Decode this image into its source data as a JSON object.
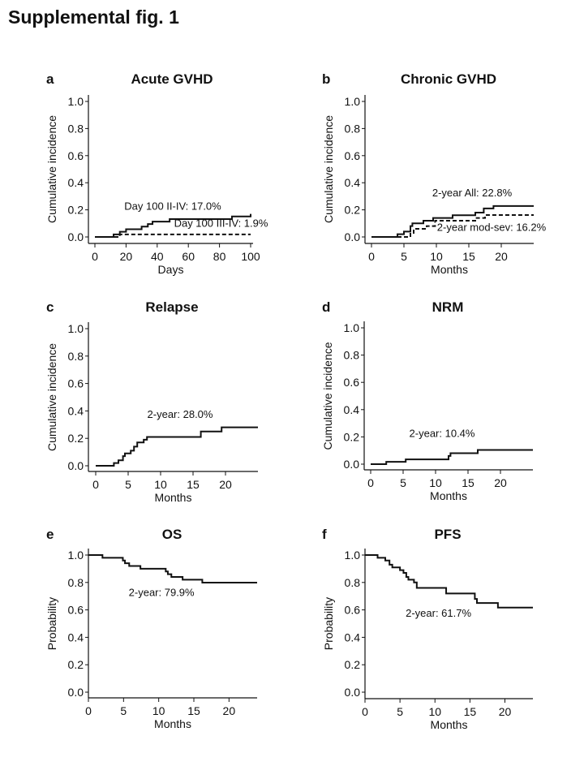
{
  "figure": {
    "title": "Supplemental fig. 1"
  },
  "chart_data": [
    {
      "type": "line",
      "letter": "a",
      "title": "Acute GVHD",
      "xlabel": "Days",
      "ylabel": "Cumulative incidence",
      "xlim": [
        0,
        100
      ],
      "ylim": [
        0,
        1
      ],
      "xticks": [
        0,
        20,
        40,
        60,
        80,
        100
      ],
      "xtick_labels": [
        "0",
        "20",
        "40",
        "60",
        "80",
        "100"
      ],
      "yticks": [
        0,
        0.2,
        0.4,
        0.6,
        0.8,
        1.0
      ],
      "ytick_labels": [
        "0.0",
        "0.2",
        "0.4",
        "0.6",
        "0.8",
        "1.0"
      ],
      "series": [
        {
          "name": "II-IV",
          "style": "solid",
          "step": true,
          "x": [
            0,
            12,
            16,
            20,
            30,
            34,
            37,
            48,
            88,
            100
          ],
          "y": [
            0,
            0.019,
            0.038,
            0.057,
            0.076,
            0.095,
            0.113,
            0.132,
            0.151,
            0.17
          ]
        },
        {
          "name": "III-IV",
          "style": "dashed",
          "step": true,
          "x": [
            0,
            16,
            100
          ],
          "y": [
            0,
            0.019,
            0.019
          ]
        }
      ],
      "annotations": [
        {
          "text": "Day 100 II-IV:  17.0%",
          "x": 50,
          "y": 0.2
        },
        {
          "text": "Day 100 III-IV:  1.9%",
          "x": 81,
          "y": 0.075
        }
      ]
    },
    {
      "type": "line",
      "letter": "b",
      "title": "Chronic GVHD",
      "xlabel": "Months",
      "ylabel": "Cumulative incidence",
      "xlim": [
        0,
        25
      ],
      "ylim": [
        0,
        1
      ],
      "xticks": [
        0,
        5,
        10,
        15,
        20
      ],
      "xtick_labels": [
        "0",
        "5",
        "10",
        "15",
        "20"
      ],
      "yticks": [
        0,
        0.2,
        0.4,
        0.6,
        0.8,
        1.0
      ],
      "ytick_labels": [
        "0.0",
        "0.2",
        "0.4",
        "0.6",
        "0.8",
        "1.0"
      ],
      "series": [
        {
          "name": "All",
          "style": "solid",
          "step": true,
          "x": [
            0,
            4,
            5,
            6,
            6.3,
            8,
            9.5,
            12.5,
            16,
            17.3,
            18.8,
            25
          ],
          "y": [
            0,
            0.02,
            0.04,
            0.08,
            0.1,
            0.12,
            0.14,
            0.16,
            0.18,
            0.21,
            0.228,
            0.228
          ]
        },
        {
          "name": "mod-sev",
          "style": "dashed",
          "step": true,
          "x": [
            0,
            6,
            6.5,
            8.5,
            9.8,
            16,
            17.5,
            25
          ],
          "y": [
            0,
            0.03,
            0.06,
            0.08,
            0.12,
            0.14,
            0.162,
            0.162
          ]
        }
      ],
      "annotations": [
        {
          "text": "2-year All:  22.8%",
          "x": 15.5,
          "y": 0.3
        },
        {
          "text": "2-year mod-sev: 16.2%",
          "x": 18.5,
          "y": 0.045
        }
      ]
    },
    {
      "type": "line",
      "letter": "c",
      "title": "Relapse",
      "xlabel": "Months",
      "ylabel": "Cumulative incidence",
      "xlim": [
        0,
        25
      ],
      "ylim": [
        0,
        1
      ],
      "xticks": [
        0,
        5,
        10,
        15,
        20
      ],
      "xtick_labels": [
        "0",
        "5",
        "10",
        "15",
        "20"
      ],
      "yticks": [
        0,
        0.2,
        0.4,
        0.6,
        0.8,
        1.0
      ],
      "ytick_labels": [
        "0.0",
        "0.2",
        "0.4",
        "0.6",
        "0.8",
        "1.0"
      ],
      "series": [
        {
          "name": "Relapse",
          "style": "solid",
          "step": true,
          "x": [
            0,
            2.8,
            3.5,
            4.2,
            4.5,
            5.4,
            5.9,
            6.4,
            7.4,
            7.9,
            16.2,
            19.4,
            25
          ],
          "y": [
            0,
            0.02,
            0.04,
            0.07,
            0.09,
            0.11,
            0.14,
            0.17,
            0.19,
            0.21,
            0.25,
            0.28,
            0.28
          ]
        }
      ],
      "annotations": [
        {
          "text": "2-year: 28.0%",
          "x": 13,
          "y": 0.35
        }
      ]
    },
    {
      "type": "line",
      "letter": "d",
      "title": "NRM",
      "xlabel": "Months",
      "ylabel": "Cumulative incidence",
      "xlim": [
        0,
        25
      ],
      "ylim": [
        0,
        1
      ],
      "xticks": [
        0,
        5,
        10,
        15,
        20
      ],
      "xtick_labels": [
        "0",
        "5",
        "10",
        "15",
        "20"
      ],
      "yticks": [
        0,
        0.2,
        0.4,
        0.6,
        0.8,
        1.0
      ],
      "ytick_labels": [
        "0.0",
        "0.2",
        "0.4",
        "0.6",
        "0.8",
        "1.0"
      ],
      "series": [
        {
          "name": "NRM",
          "style": "solid",
          "step": true,
          "x": [
            0,
            2.4,
            5.4,
            12,
            12.3,
            16.5,
            25
          ],
          "y": [
            0,
            0.017,
            0.035,
            0.06,
            0.08,
            0.104,
            0.104
          ]
        }
      ],
      "annotations": [
        {
          "text": "2-year: 10.4%",
          "x": 11,
          "y": 0.2
        }
      ]
    },
    {
      "type": "line",
      "letter": "e",
      "title": "OS",
      "xlabel": "Months",
      "ylabel": "Probability",
      "xlim": [
        0,
        24
      ],
      "ylim": [
        0,
        1
      ],
      "xticks": [
        0,
        5,
        10,
        15,
        20
      ],
      "xtick_labels": [
        "0",
        "5",
        "10",
        "15",
        "20"
      ],
      "yticks": [
        0,
        0.2,
        0.4,
        0.6,
        0.8,
        1.0
      ],
      "ytick_labels": [
        "0.0",
        "0.2",
        "0.4",
        "0.6",
        "0.8",
        "1.0"
      ],
      "series": [
        {
          "name": "OS",
          "style": "solid",
          "step": true,
          "x": [
            0,
            2,
            4.9,
            5.2,
            5.8,
            7.4,
            11,
            11.3,
            11.8,
            13.4,
            16.2,
            24
          ],
          "y": [
            1,
            0.98,
            0.96,
            0.94,
            0.92,
            0.9,
            0.88,
            0.86,
            0.84,
            0.82,
            0.799,
            0.799
          ]
        }
      ],
      "annotations": [
        {
          "text": "2-year: 79.9%",
          "x": 10.4,
          "y": 0.7
        }
      ]
    },
    {
      "type": "line",
      "letter": "f",
      "title": "PFS",
      "xlabel": "Months",
      "ylabel": "Probability",
      "xlim": [
        0,
        24
      ],
      "ylim": [
        0,
        1
      ],
      "xticks": [
        0,
        5,
        10,
        15,
        20
      ],
      "xtick_labels": [
        "0",
        "5",
        "10",
        "15",
        "20"
      ],
      "yticks": [
        0,
        0.2,
        0.4,
        0.6,
        0.8,
        1.0
      ],
      "ytick_labels": [
        "0.0",
        "0.2",
        "0.4",
        "0.6",
        "0.8",
        "1.0"
      ],
      "series": [
        {
          "name": "PFS",
          "style": "solid",
          "step": true,
          "x": [
            0,
            1.8,
            2.9,
            3.5,
            3.9,
            5,
            5.5,
            5.9,
            6.2,
            7,
            7.4,
            11.6,
            15.7,
            16,
            19,
            24
          ],
          "y": [
            1,
            0.98,
            0.96,
            0.93,
            0.91,
            0.89,
            0.87,
            0.84,
            0.82,
            0.8,
            0.76,
            0.72,
            0.68,
            0.65,
            0.617,
            0.617
          ]
        }
      ],
      "annotations": [
        {
          "text": "2-year: 61.7%",
          "x": 10.5,
          "y": 0.55
        }
      ]
    }
  ]
}
